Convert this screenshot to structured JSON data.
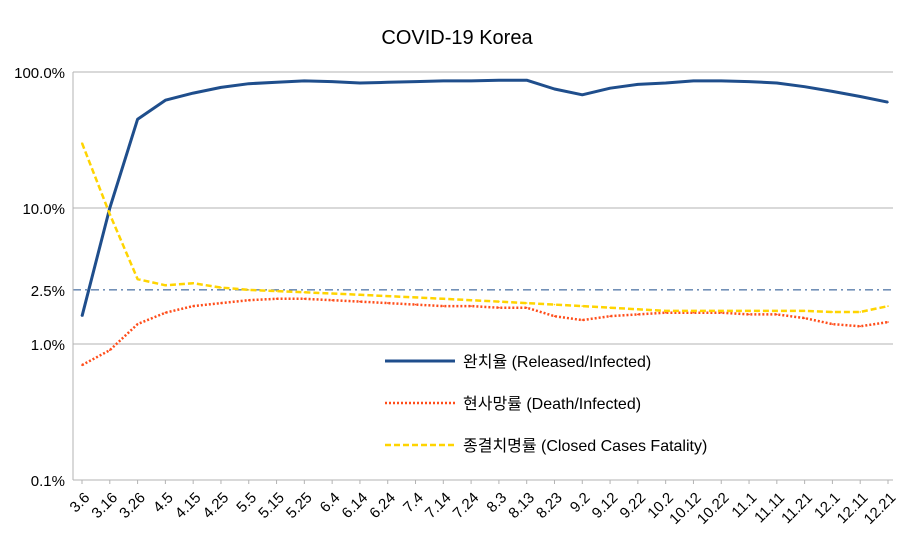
{
  "chart_data": {
    "type": "line",
    "title": "COVID-19 Korea",
    "yscale": "log",
    "ylim": [
      0.1,
      100
    ],
    "yticks": [
      "0.1%",
      "1.0%",
      "2.5%",
      "10.0%",
      "100.0%"
    ],
    "ytick_values": [
      0.1,
      1,
      2.5,
      10,
      100
    ],
    "reference_line": {
      "value": 2.5,
      "style": "dash-dot",
      "color": "#1f4e8c"
    },
    "grid": true,
    "legend_position": "center-right",
    "categories": [
      "3.6",
      "3.16",
      "3.26",
      "4.5",
      "4.15",
      "4.25",
      "5.5",
      "5.15",
      "5.25",
      "6.4",
      "6.14",
      "6.24",
      "7.4",
      "7.14",
      "7.24",
      "8.3",
      "8.13",
      "8.23",
      "9.2",
      "9.12",
      "9.22",
      "10.2",
      "10.12",
      "10.22",
      "11.1",
      "11.11",
      "11.21",
      "12.1",
      "12.11",
      "12.21"
    ],
    "series": [
      {
        "name": "완치율 (Released/Infected)",
        "color": "#1f4e8c",
        "style": "solid",
        "values": [
          1.6,
          10,
          45,
          62,
          70,
          77,
          82,
          84,
          86,
          85,
          83,
          84,
          85,
          86,
          86,
          87,
          87,
          75,
          68,
          76,
          81,
          83,
          86,
          86,
          85,
          83,
          78,
          72,
          66,
          60
        ]
      },
      {
        "name": "현사망률 (Death/Infected)",
        "color": "#ff4d1a",
        "style": "dotted",
        "values": [
          0.7,
          0.9,
          1.4,
          1.7,
          1.9,
          2.0,
          2.1,
          2.15,
          2.15,
          2.1,
          2.05,
          2.0,
          1.95,
          1.9,
          1.9,
          1.85,
          1.85,
          1.6,
          1.5,
          1.6,
          1.65,
          1.7,
          1.7,
          1.7,
          1.65,
          1.65,
          1.55,
          1.4,
          1.35,
          1.45
        ]
      },
      {
        "name": "종결치명률 (Closed Cases Fatality)",
        "color": "#ffd400",
        "style": "dashed",
        "values": [
          30,
          9,
          3,
          2.7,
          2.8,
          2.6,
          2.5,
          2.45,
          2.4,
          2.35,
          2.3,
          2.25,
          2.2,
          2.15,
          2.1,
          2.05,
          2.0,
          1.95,
          1.9,
          1.85,
          1.8,
          1.75,
          1.75,
          1.75,
          1.75,
          1.75,
          1.75,
          1.72,
          1.72,
          1.9
        ]
      }
    ]
  }
}
